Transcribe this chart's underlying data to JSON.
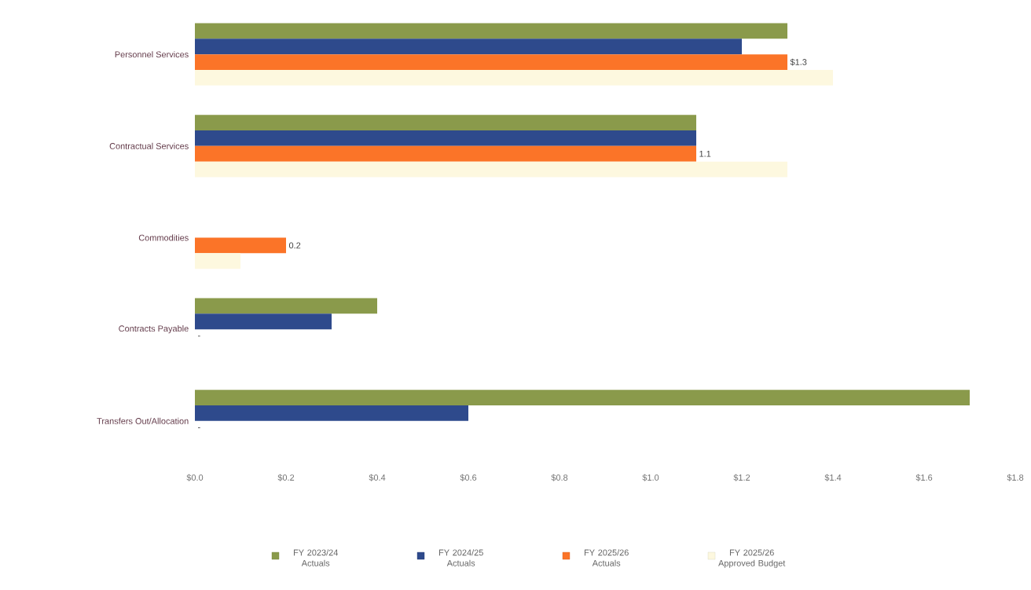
{
  "chart_data": {
    "type": "bar",
    "orientation": "horizontal",
    "categories": [
      "Personnel Services",
      "Contractual Services",
      "Commodities",
      "Contracts Payable",
      "Transfers Out/Allocation"
    ],
    "series": [
      {
        "name": "FY 2023/24 Actuals",
        "color": "#8a9a4b",
        "values": [
          1.3,
          1.1,
          null,
          0.4,
          1.7
        ]
      },
      {
        "name": "FY 2024/25 Actuals",
        "color": "#2e4a8c",
        "values": [
          1.2,
          1.1,
          null,
          0.3,
          0.6
        ]
      },
      {
        "name": "FY 2025/26 Actuals",
        "color": "#fb7428",
        "values": [
          1.3,
          1.1,
          0.2,
          0,
          0
        ],
        "value_labels": [
          "$1.3",
          "1.1",
          "0.2",
          "-",
          "-"
        ]
      },
      {
        "name": "FY 2025/26 Approved Budget",
        "color": "#fdf8df",
        "values": [
          1.4,
          1.3,
          0.1,
          null,
          null
        ]
      }
    ],
    "xlim": [
      0,
      1.8
    ],
    "xticks": [
      {
        "value": 0,
        "label": "$0.0"
      },
      {
        "value": 0.2,
        "label": "$0.2"
      },
      {
        "value": 0.4,
        "label": "$0.4"
      },
      {
        "value": 0.6,
        "label": "$0.6"
      },
      {
        "value": 0.8,
        "label": "$0.8"
      },
      {
        "value": 1.0,
        "label": "$1.0"
      },
      {
        "value": 1.2,
        "label": "$1.2"
      },
      {
        "value": 1.4,
        "label": "$1.4"
      },
      {
        "value": 1.6,
        "label": "$1.6"
      },
      {
        "value": 1.8,
        "label": "$1.8"
      }
    ],
    "legend": "bottom",
    "grid": false
  }
}
